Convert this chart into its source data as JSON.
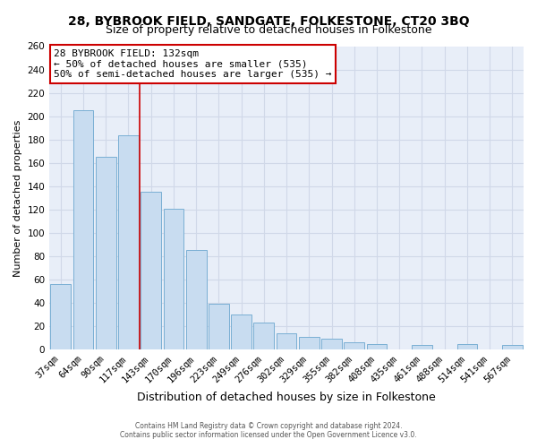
{
  "title1": "28, BYBROOK FIELD, SANDGATE, FOLKESTONE, CT20 3BQ",
  "title2": "Size of property relative to detached houses in Folkestone",
  "xlabel": "Distribution of detached houses by size in Folkestone",
  "ylabel": "Number of detached properties",
  "bar_labels": [
    "37sqm",
    "64sqm",
    "90sqm",
    "117sqm",
    "143sqm",
    "170sqm",
    "196sqm",
    "223sqm",
    "249sqm",
    "276sqm",
    "302sqm",
    "329sqm",
    "355sqm",
    "382sqm",
    "408sqm",
    "435sqm",
    "461sqm",
    "488sqm",
    "514sqm",
    "541sqm",
    "567sqm"
  ],
  "bar_values": [
    56,
    205,
    165,
    184,
    135,
    121,
    85,
    39,
    30,
    23,
    14,
    11,
    9,
    6,
    5,
    0,
    4,
    0,
    5,
    0,
    4
  ],
  "bar_color": "#c8dcf0",
  "bar_edge_color": "#7aafd4",
  "annotation_title": "28 BYBROOK FIELD: 132sqm",
  "annotation_line1": "← 50% of detached houses are smaller (535)",
  "annotation_line2": "50% of semi-detached houses are larger (535) →",
  "annotation_box_facecolor": "#ffffff",
  "annotation_box_edgecolor": "#cc0000",
  "vline_color": "#cc0000",
  "vline_x": 3.5,
  "ylim": [
    0,
    260
  ],
  "yticks": [
    0,
    20,
    40,
    60,
    80,
    100,
    120,
    140,
    160,
    180,
    200,
    220,
    240,
    260
  ],
  "grid_color": "#d0d8e8",
  "bg_color": "#ffffff",
  "plot_bg_color": "#e8eef8",
  "footer1": "Contains HM Land Registry data © Crown copyright and database right 2024.",
  "footer2": "Contains public sector information licensed under the Open Government Licence v3.0.",
  "title1_fontsize": 10,
  "title2_fontsize": 9,
  "xlabel_fontsize": 9,
  "ylabel_fontsize": 8,
  "tick_fontsize": 7.5
}
